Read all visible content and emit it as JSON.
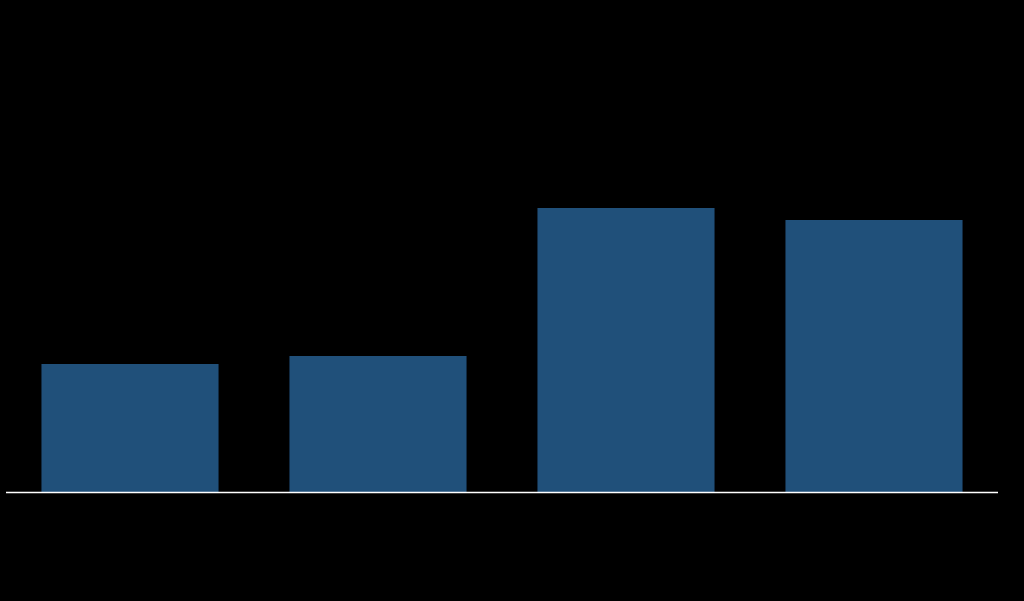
{
  "chart_data": {
    "type": "bar",
    "categories": [
      null,
      null,
      null,
      null
    ],
    "values": [
      32,
      34,
      71,
      68
    ],
    "color": "#20507a",
    "ylim": [
      0,
      100
    ]
  }
}
